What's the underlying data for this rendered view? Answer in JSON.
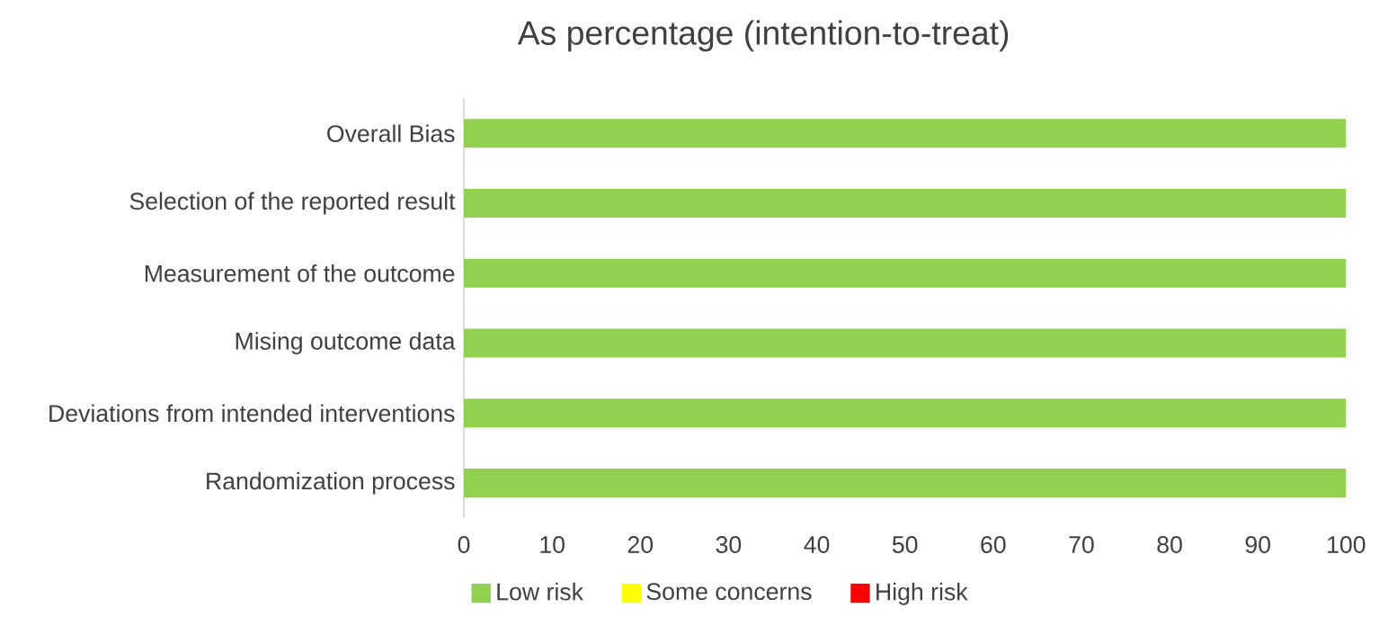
{
  "chart_data": {
    "type": "bar",
    "orientation": "horizontal",
    "stacked": true,
    "title": "As percentage (intention-to-treat)",
    "categories": [
      "Overall Bias",
      "Selection of the reported result",
      "Measurement of the outcome",
      "Mising outcome data",
      "Deviations from intended interventions",
      "Randomization process"
    ],
    "series": [
      {
        "name": "Low risk",
        "color": "#92d050",
        "values": [
          100,
          100,
          100,
          100,
          100,
          100
        ]
      },
      {
        "name": "Some concerns",
        "color": "#ffff00",
        "values": [
          0,
          0,
          0,
          0,
          0,
          0
        ]
      },
      {
        "name": "High risk",
        "color": "#ff0000",
        "values": [
          0,
          0,
          0,
          0,
          0,
          0
        ]
      }
    ],
    "xlim": [
      0,
      100
    ],
    "xticks": [
      0,
      10,
      20,
      30,
      40,
      50,
      60,
      70,
      80,
      90,
      100
    ],
    "legend": "bottom"
  }
}
